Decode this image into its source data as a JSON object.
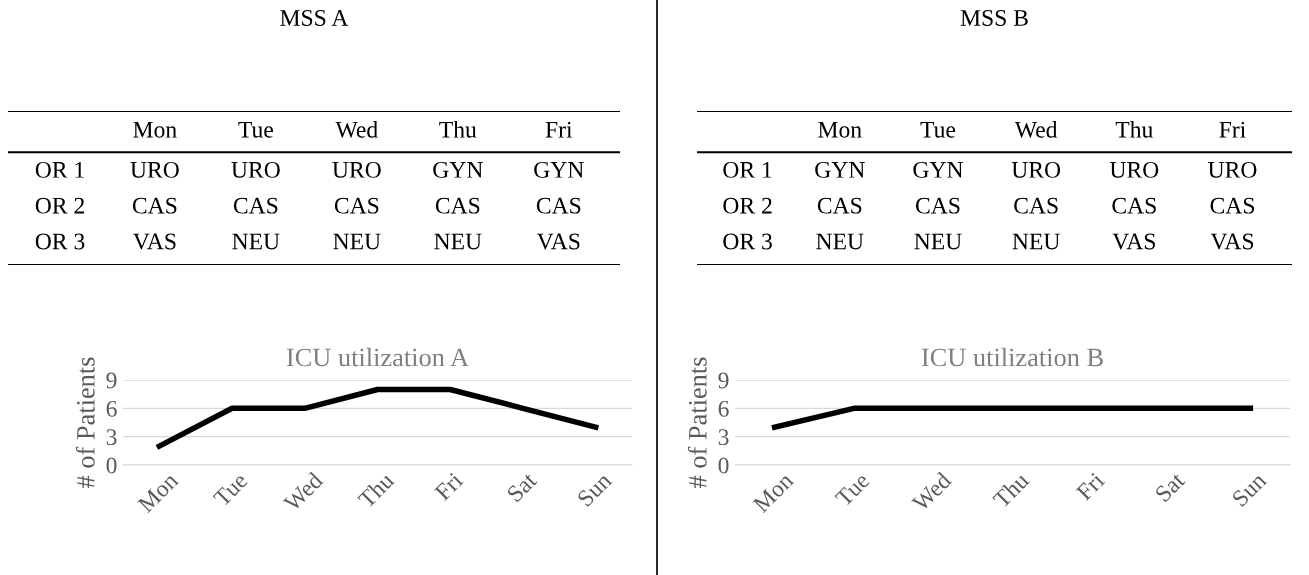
{
  "chart_data": [
    {
      "type": "other",
      "title": "MSS A",
      "categories": [
        "Mon",
        "Tue",
        "Wed",
        "Thu",
        "Fri"
      ],
      "y_categories": [
        "OR 1",
        "OR 2",
        "OR 3"
      ],
      "cell_labels": [
        [
          "URO",
          "URO",
          "URO",
          "GYN",
          "GYN"
        ],
        [
          "CAS",
          "CAS",
          "CAS",
          "CAS",
          "CAS"
        ],
        [
          "VAS",
          "NEU",
          "NEU",
          "NEU",
          "VAS"
        ]
      ]
    },
    {
      "type": "line",
      "title": "ICU utilization A",
      "ylabel": "# of Patients",
      "categories": [
        "Mon",
        "Tue",
        "Wed",
        "Thu",
        "Fri",
        "Sat",
        "Sun"
      ],
      "series": [
        {
          "color": "#000000",
          "values": [
            2,
            6,
            6,
            8,
            8,
            6,
            4
          ]
        }
      ],
      "ylim": [
        0,
        9
      ],
      "yticks": [
        0,
        3,
        6,
        9
      ],
      "grid": "y"
    },
    {
      "type": "other",
      "title": "MSS B",
      "categories": [
        "Mon",
        "Tue",
        "Wed",
        "Thu",
        "Fri"
      ],
      "y_categories": [
        "OR 1",
        "OR 2",
        "OR 3"
      ],
      "cell_labels": [
        [
          "GYN",
          "GYN",
          "URO",
          "URO",
          "URO"
        ],
        [
          "CAS",
          "CAS",
          "CAS",
          "CAS",
          "CAS"
        ],
        [
          "NEU",
          "NEU",
          "NEU",
          "VAS",
          "VAS"
        ]
      ]
    },
    {
      "type": "line",
      "title": "ICU utilization B",
      "ylabel": "# of Patients",
      "categories": [
        "Mon",
        "Tue",
        "Wed",
        "Thu",
        "Fri",
        "Sat",
        "Sun"
      ],
      "series": [
        {
          "color": "#000000",
          "values": [
            4,
            6,
            6,
            6,
            6,
            6,
            6
          ]
        }
      ],
      "ylim": [
        0,
        9
      ],
      "yticks": [
        0,
        3,
        6,
        9
      ],
      "grid": "y"
    }
  ]
}
